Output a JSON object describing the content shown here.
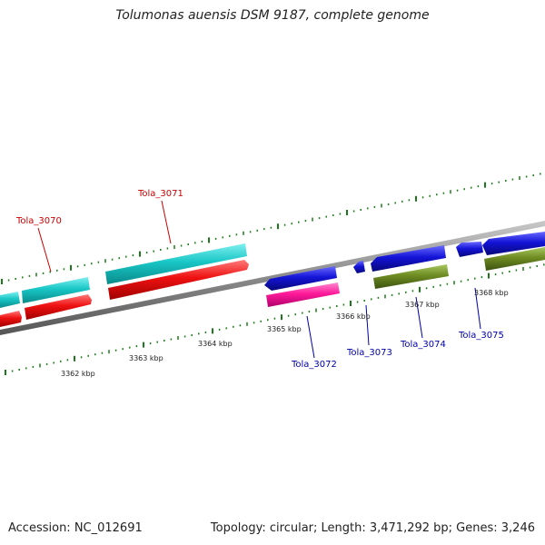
{
  "title": "Tolumonas auensis DSM 9187, complete genome",
  "footer": {
    "accession": "Accession: NC_012691",
    "summary": "Topology: circular; Length: 3,471,292 bp; Genes: 3,246"
  },
  "colors": {
    "backbone": "#8a8a8a",
    "tick": "#1a7a1a",
    "cyan_gene": "#19c6c6",
    "red_gene": "#ee1111",
    "blue_gene": "#1414d8",
    "pink_gene": "#ff1a9a",
    "olive_gene": "#6e8c22",
    "label_red": "#cc0000",
    "label_blue": "#0000aa"
  },
  "scale_labels": [
    "3362 kbp",
    "3363 kbp",
    "3364 kbp",
    "3365 kbp",
    "3366 kbp",
    "3367 kbp",
    "3368 kbp"
  ],
  "gene_labels": {
    "top": [
      "Tola_3070",
      "Tola_3071"
    ],
    "bottom": [
      "Tola_3072",
      "Tola_3073",
      "Tola_3074",
      "Tola_3075"
    ]
  }
}
